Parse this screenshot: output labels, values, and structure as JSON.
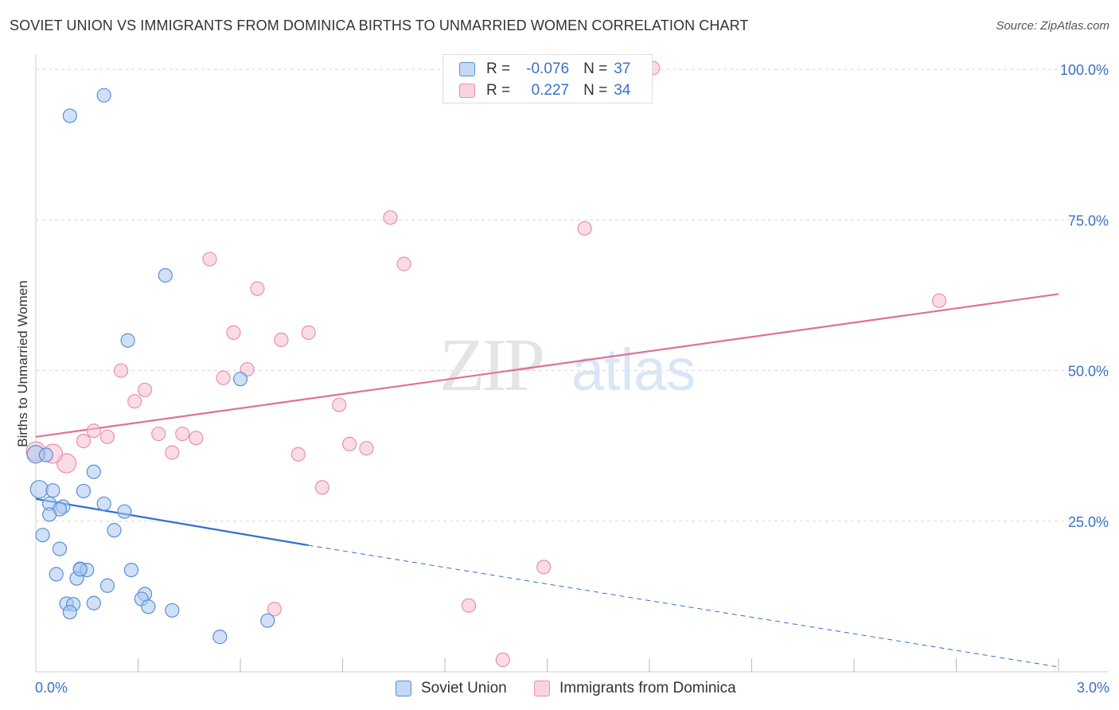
{
  "header": {
    "title": "SOVIET UNION VS IMMIGRANTS FROM DOMINICA BIRTHS TO UNMARRIED WOMEN CORRELATION CHART",
    "source": "Source: ZipAtlas.com"
  },
  "watermark": {
    "zip": "ZIP",
    "atlas": "atlas"
  },
  "colors": {
    "soviet_fill": "#a9c8f0",
    "soviet_stroke": "#5b8fd6",
    "soviet_line": "#2f6fcf",
    "dominica_fill": "#f7bfd0",
    "dominica_stroke": "#e890ac",
    "dominica_line": "#e0709a",
    "tick_text": "#3a72c4",
    "grid": "#d8d8d8"
  },
  "legend_top": [
    {
      "r_label": "R =",
      "r_value": "-0.076",
      "n_label": "N =",
      "n_value": "37"
    },
    {
      "r_label": "R =",
      "r_value": "0.227",
      "n_label": "N =",
      "n_value": "34"
    }
  ],
  "legend_bottom": [
    "Soviet Union",
    "Immigrants from Dominica"
  ],
  "chart_data": {
    "type": "scatter",
    "title": "SOVIET UNION VS IMMIGRANTS FROM DOMINICA BIRTHS TO UNMARRIED WOMEN CORRELATION CHART",
    "xlabel": "",
    "ylabel": "Births to Unmarried Women",
    "xlim": [
      0,
      3.0
    ],
    "ylim": [
      0,
      102
    ],
    "x_tick_labels": [
      "0.0%",
      "3.0%"
    ],
    "y_ticks": [
      25,
      50,
      75,
      100
    ],
    "y_tick_labels": [
      "25.0%",
      "50.0%",
      "75.0%",
      "100.0%"
    ],
    "grid": "horizontal dashed",
    "series": [
      {
        "name": "Soviet Union",
        "r": -0.076,
        "n": 37,
        "trend": {
          "x0": 0.0,
          "y0": 28.7,
          "x1": 0.8,
          "y1": 21.0,
          "extend_to_x": 3.0,
          "extend_to_y": 0.8
        },
        "points": [
          [
            0.2,
            95.7
          ],
          [
            0.1,
            92.3
          ],
          [
            0.38,
            65.8
          ],
          [
            0.27,
            55.0
          ],
          [
            0.6,
            48.6
          ],
          [
            0.0,
            36.1
          ],
          [
            0.03,
            36.0
          ],
          [
            0.17,
            33.2
          ],
          [
            0.01,
            30.3
          ],
          [
            0.05,
            30.1
          ],
          [
            0.14,
            30.0
          ],
          [
            0.04,
            27.9
          ],
          [
            0.08,
            27.4
          ],
          [
            0.2,
            27.9
          ],
          [
            0.07,
            27.0
          ],
          [
            0.26,
            26.6
          ],
          [
            0.04,
            26.1
          ],
          [
            0.23,
            23.5
          ],
          [
            0.02,
            22.7
          ],
          [
            0.07,
            20.4
          ],
          [
            0.06,
            16.2
          ],
          [
            0.13,
            17.1
          ],
          [
            0.15,
            16.9
          ],
          [
            0.28,
            16.9
          ],
          [
            0.12,
            15.5
          ],
          [
            0.21,
            14.3
          ],
          [
            0.32,
            12.9
          ],
          [
            0.31,
            12.1
          ],
          [
            0.09,
            11.3
          ],
          [
            0.11,
            11.2
          ],
          [
            0.17,
            11.4
          ],
          [
            0.33,
            10.8
          ],
          [
            0.1,
            9.9
          ],
          [
            0.4,
            10.2
          ],
          [
            0.54,
            5.8
          ],
          [
            0.68,
            8.5
          ],
          [
            0.13,
            17.0
          ]
        ]
      },
      {
        "name": "Immigrants from Dominica",
        "r": 0.227,
        "n": 34,
        "trend": {
          "x0": 0.0,
          "y0": 39.0,
          "x1": 3.0,
          "y1": 62.7
        },
        "points": [
          [
            1.81,
            100.2
          ],
          [
            1.04,
            75.4
          ],
          [
            1.61,
            73.6
          ],
          [
            0.51,
            68.5
          ],
          [
            1.08,
            67.7
          ],
          [
            0.65,
            63.6
          ],
          [
            2.65,
            61.6
          ],
          [
            0.58,
            56.3
          ],
          [
            0.8,
            56.3
          ],
          [
            0.72,
            55.1
          ],
          [
            0.25,
            50.0
          ],
          [
            0.62,
            50.2
          ],
          [
            0.55,
            48.8
          ],
          [
            0.32,
            46.8
          ],
          [
            0.29,
            44.9
          ],
          [
            0.89,
            44.3
          ],
          [
            0.17,
            40.0
          ],
          [
            0.36,
            39.5
          ],
          [
            0.43,
            39.5
          ],
          [
            0.21,
            39.0
          ],
          [
            0.47,
            38.8
          ],
          [
            0.14,
            38.3
          ],
          [
            0.92,
            37.8
          ],
          [
            0.97,
            37.1
          ],
          [
            0.0,
            36.6
          ],
          [
            0.4,
            36.4
          ],
          [
            0.77,
            36.1
          ],
          [
            0.09,
            34.6
          ],
          [
            0.84,
            30.6
          ],
          [
            1.49,
            17.4
          ],
          [
            0.7,
            10.4
          ],
          [
            1.27,
            11.0
          ],
          [
            1.37,
            2.0
          ],
          [
            0.05,
            36.2
          ]
        ]
      }
    ]
  }
}
